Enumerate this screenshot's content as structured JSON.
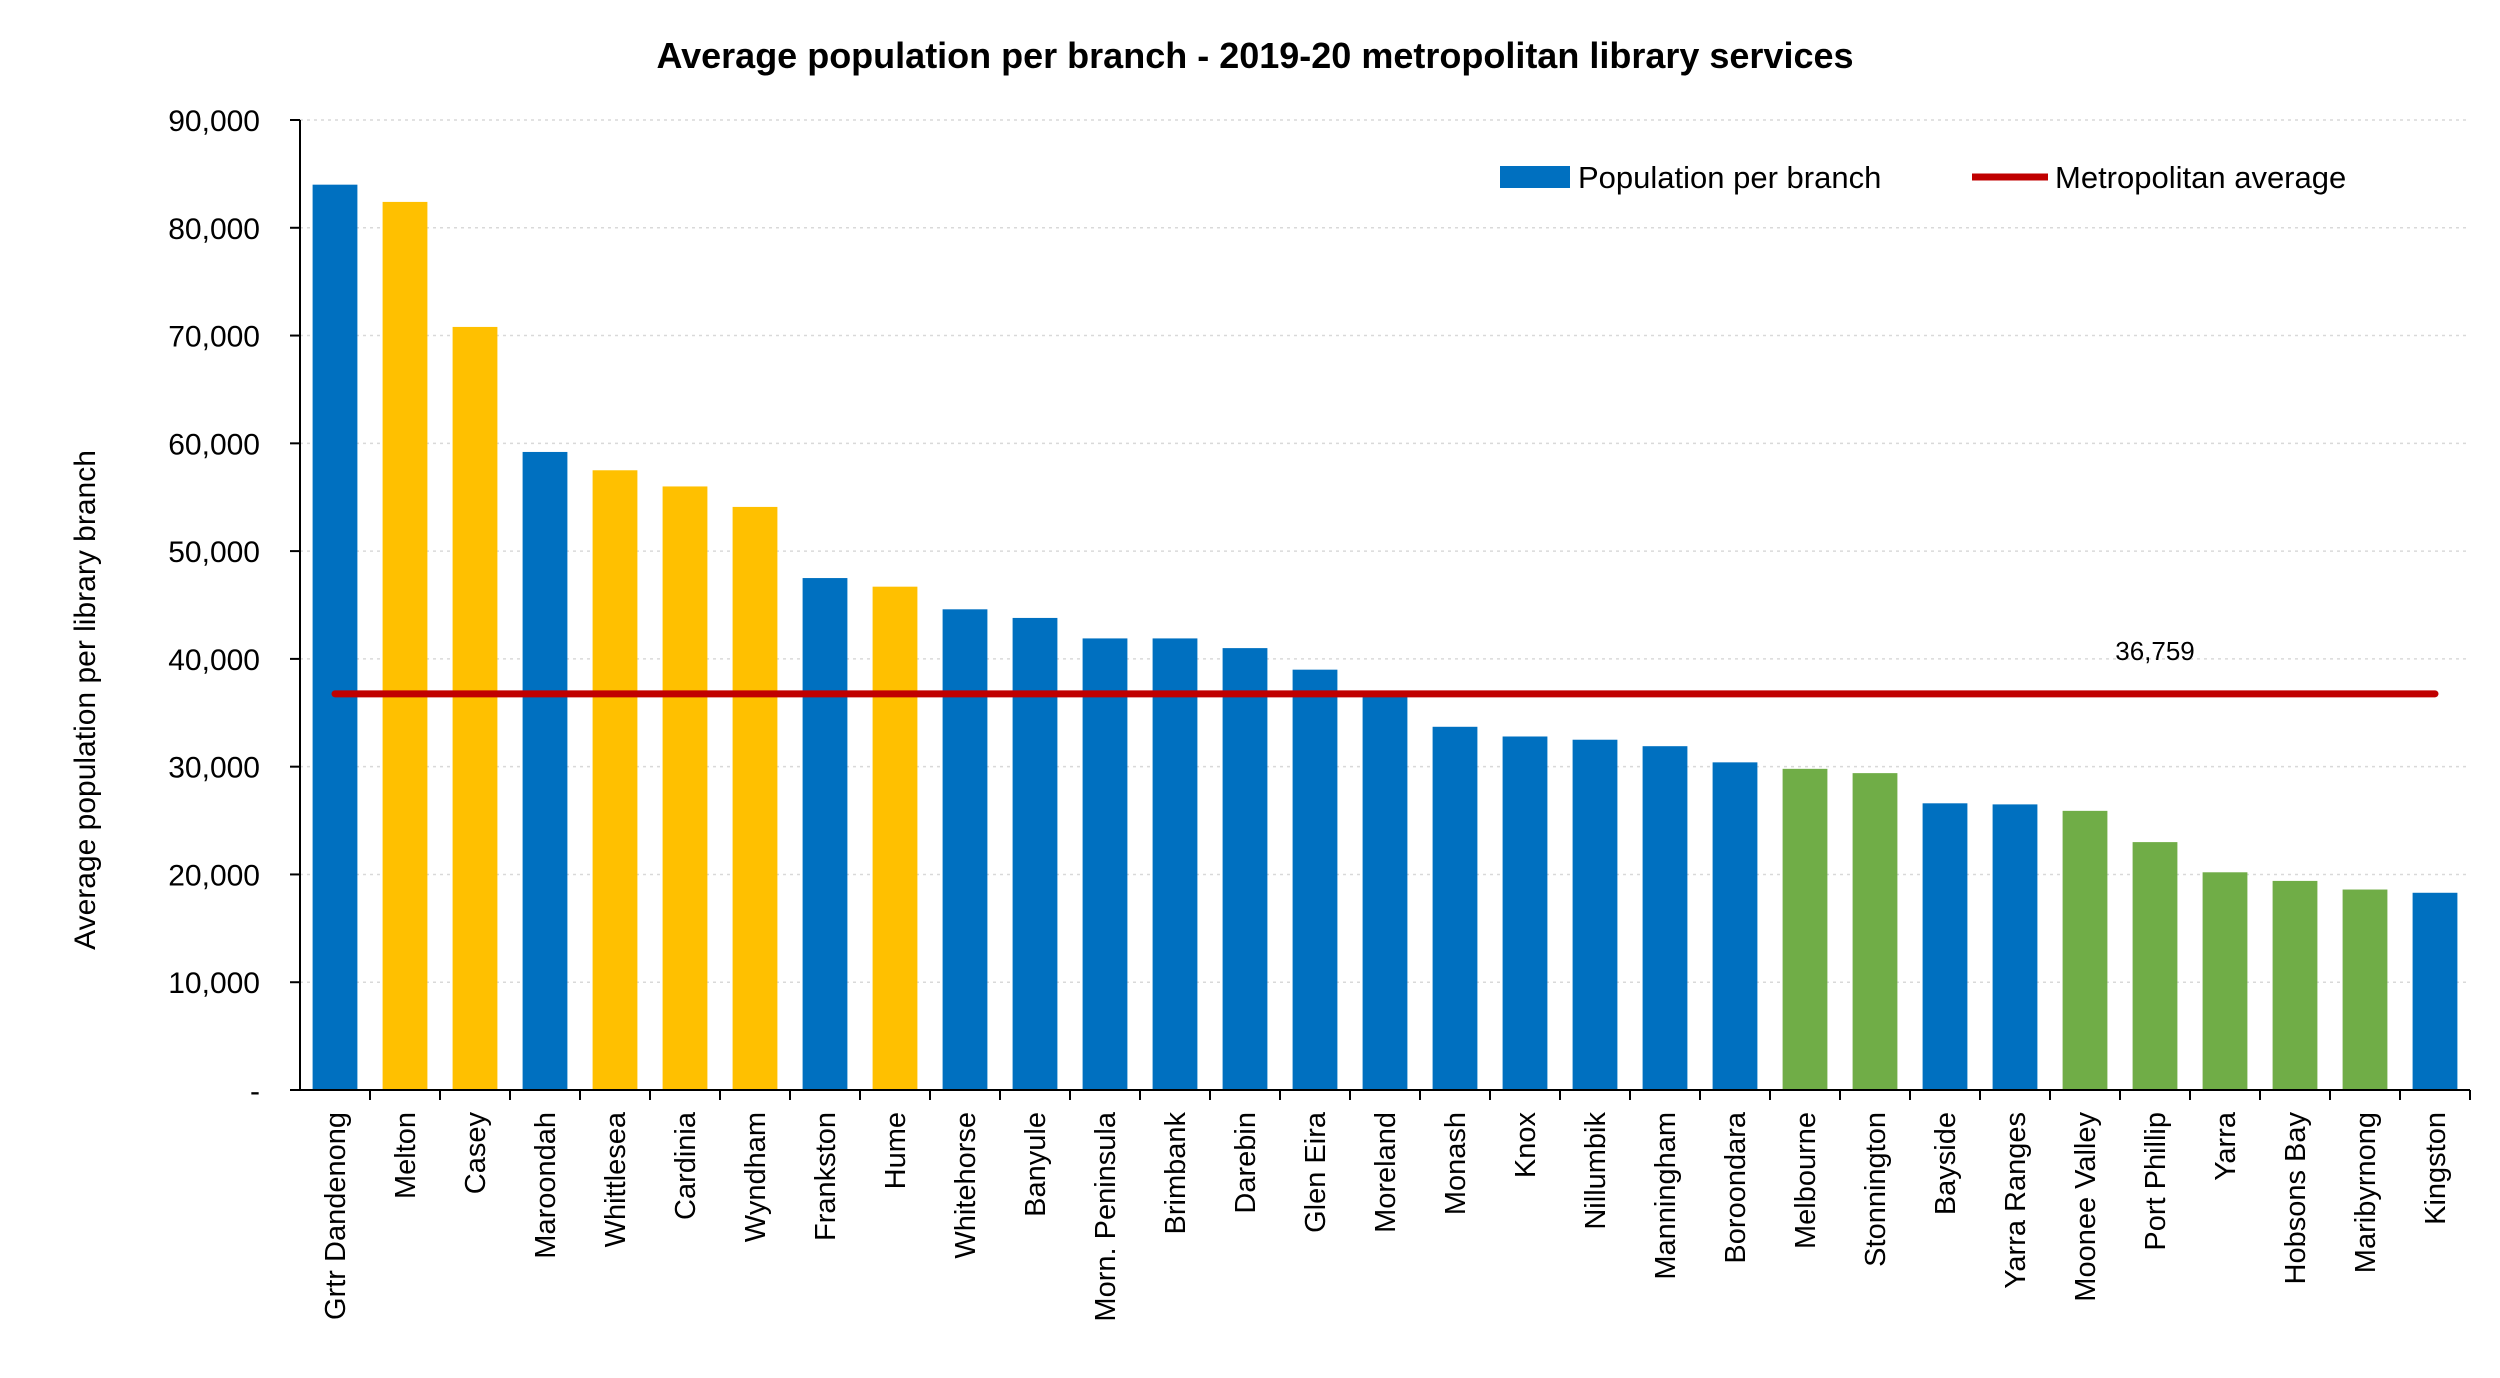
{
  "chart_data": {
    "type": "bar",
    "title": "Average population per branch - 2019-20 metropolitan library services",
    "ylabel": "Average population per library branch",
    "ylim": [
      0,
      90000
    ],
    "yticks": [
      "-",
      "10,000",
      "20,000",
      "30,000",
      "40,000",
      "50,000",
      "60,000",
      "70,000",
      "80,000",
      "90,000"
    ],
    "grid": true,
    "legend_position": "top-right",
    "legend": {
      "bar_label": "Population per branch",
      "line_label": "Metropolitan average"
    },
    "colors": {
      "blue": "#0070C0",
      "yellow": "#FFC000",
      "green": "#70AD47",
      "average_line": "#C00000"
    },
    "categories": [
      "Grtr Dandenong",
      "Melton",
      "Casey",
      "Maroondah",
      "Whittlesea",
      "Cardinia",
      "Wyndham",
      "Frankston",
      "Hume",
      "Whitehorse",
      "Banyule",
      "Morn. Peninsula",
      "Brimbank",
      "Darebin",
      "Glen Eira",
      "Moreland",
      "Monash",
      "Knox",
      "Nillumbik",
      "Manningham",
      "Boroondara",
      "Melbourne",
      "Stonnington",
      "Bayside",
      "Yarra Ranges",
      "Moonee Valley",
      "Port Phillip",
      "Yarra",
      "Hobsons Bay",
      "Maribyrnong",
      "Kingston"
    ],
    "values": [
      84000,
      82400,
      70800,
      59200,
      57500,
      56000,
      54100,
      47500,
      46700,
      44600,
      43800,
      41900,
      41900,
      41000,
      39000,
      36700,
      33700,
      32800,
      32500,
      31900,
      30400,
      29800,
      29400,
      26600,
      26500,
      25900,
      23000,
      20200,
      19400,
      18600,
      18300
    ],
    "bar_colors": [
      "blue",
      "yellow",
      "yellow",
      "blue",
      "yellow",
      "yellow",
      "yellow",
      "blue",
      "yellow",
      "blue",
      "blue",
      "blue",
      "blue",
      "blue",
      "blue",
      "blue",
      "blue",
      "blue",
      "blue",
      "blue",
      "blue",
      "green",
      "green",
      "blue",
      "blue",
      "green",
      "green",
      "green",
      "green",
      "green",
      "blue"
    ],
    "average": {
      "value": 36759,
      "label": "36,759"
    }
  }
}
